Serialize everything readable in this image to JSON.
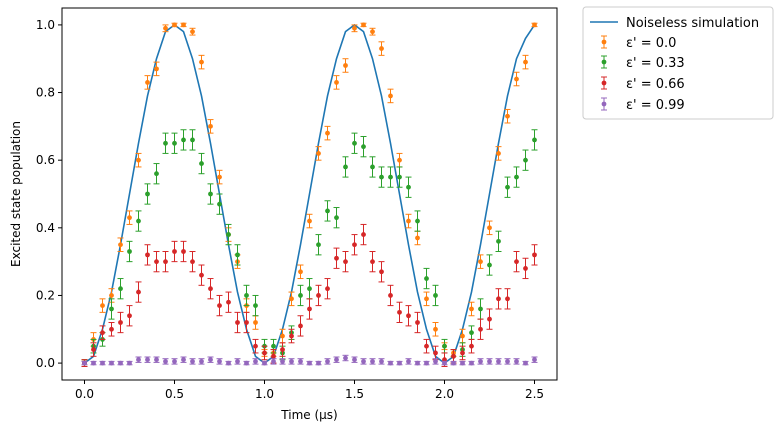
{
  "chart_data": {
    "type": "scatter",
    "xlabel": "Time (μs)",
    "ylabel": "Excited state population",
    "xlim": [
      -0.125,
      2.625
    ],
    "ylim": [
      -0.05,
      1.05
    ],
    "xticks": [
      0.0,
      0.5,
      1.0,
      1.5,
      2.0,
      2.5
    ],
    "xtick_labels": [
      "0.0",
      "0.5",
      "1.0",
      "1.5",
      "2.0",
      "2.5"
    ],
    "yticks": [
      0.0,
      0.2,
      0.4,
      0.6,
      0.8,
      1.0
    ],
    "ytick_labels": [
      "0.0",
      "0.2",
      "0.4",
      "0.6",
      "0.8",
      "1.0"
    ],
    "grid": false,
    "legend_position": "outside-top-right",
    "x": [
      0.0,
      0.05,
      0.1,
      0.15,
      0.2,
      0.25,
      0.3,
      0.35,
      0.4,
      0.45,
      0.5,
      0.55,
      0.6,
      0.65,
      0.7,
      0.75,
      0.8,
      0.85,
      0.9,
      0.95,
      1.0,
      1.05,
      1.1,
      1.15,
      1.2,
      1.25,
      1.3,
      1.35,
      1.4,
      1.45,
      1.5,
      1.55,
      1.6,
      1.65,
      1.7,
      1.75,
      1.8,
      1.85,
      1.9,
      1.95,
      2.0,
      2.05,
      2.1,
      2.15,
      2.2,
      2.25,
      2.3,
      2.35,
      2.4,
      2.45,
      2.5
    ],
    "line": {
      "name": "Noiseless simulation",
      "color": "#1f77b4",
      "x": [
        0.0,
        0.05,
        0.1,
        0.15,
        0.2,
        0.25,
        0.3,
        0.35,
        0.4,
        0.45,
        0.5,
        0.55,
        0.6,
        0.65,
        0.7,
        0.75,
        0.8,
        0.85,
        0.9,
        0.95,
        1.0,
        1.05,
        1.1,
        1.15,
        1.2,
        1.25,
        1.3,
        1.35,
        1.4,
        1.45,
        1.5,
        1.55,
        1.6,
        1.65,
        1.7,
        1.75,
        1.8,
        1.85,
        1.9,
        1.95,
        2.0,
        2.05,
        2.1,
        2.15,
        2.2,
        2.25,
        2.3,
        2.35,
        2.4,
        2.45,
        2.5
      ],
      "y": [
        0.0,
        0.02,
        0.1,
        0.21,
        0.35,
        0.5,
        0.65,
        0.79,
        0.9,
        0.98,
        1.0,
        0.98,
        0.9,
        0.79,
        0.65,
        0.5,
        0.35,
        0.21,
        0.1,
        0.02,
        0.0,
        0.02,
        0.1,
        0.21,
        0.35,
        0.5,
        0.65,
        0.79,
        0.9,
        0.98,
        1.0,
        0.98,
        0.9,
        0.79,
        0.65,
        0.5,
        0.35,
        0.21,
        0.1,
        0.02,
        0.0,
        0.02,
        0.1,
        0.21,
        0.35,
        0.5,
        0.65,
        0.79,
        0.9,
        0.96,
        1.0
      ]
    },
    "series": [
      {
        "name": "ε' = 0.0",
        "color": "#ff7f0e",
        "y": [
          0.0,
          0.07,
          0.17,
          0.2,
          0.35,
          0.43,
          0.6,
          0.83,
          0.87,
          0.99,
          1.0,
          1.0,
          0.98,
          0.89,
          0.7,
          0.55,
          0.38,
          0.3,
          0.17,
          0.12,
          0.03,
          0.03,
          0.08,
          0.19,
          0.27,
          0.42,
          0.62,
          0.68,
          0.83,
          0.88,
          0.99,
          1.0,
          0.98,
          0.93,
          0.79,
          0.6,
          0.42,
          0.37,
          0.19,
          0.1,
          0.05,
          0.03,
          0.08,
          0.16,
          0.3,
          0.4,
          0.62,
          0.73,
          0.84,
          0.89,
          1.0
        ],
        "err": [
          0.01,
          0.02,
          0.02,
          0.02,
          0.02,
          0.02,
          0.02,
          0.02,
          0.02,
          0.01,
          0.005,
          0.005,
          0.01,
          0.02,
          0.02,
          0.02,
          0.02,
          0.02,
          0.02,
          0.02,
          0.01,
          0.01,
          0.02,
          0.02,
          0.02,
          0.02,
          0.02,
          0.02,
          0.02,
          0.02,
          0.01,
          0.005,
          0.01,
          0.02,
          0.02,
          0.02,
          0.02,
          0.02,
          0.02,
          0.02,
          0.01,
          0.01,
          0.02,
          0.02,
          0.02,
          0.02,
          0.02,
          0.02,
          0.02,
          0.02,
          0.005
        ]
      },
      {
        "name": "ε' = 0.33",
        "color": "#2ca02c",
        "y": [
          0.0,
          0.05,
          0.07,
          0.16,
          0.22,
          0.33,
          0.42,
          0.5,
          0.56,
          0.65,
          0.65,
          0.66,
          0.66,
          0.59,
          0.5,
          0.47,
          0.38,
          0.32,
          0.2,
          0.17,
          0.05,
          0.05,
          0.03,
          0.09,
          0.2,
          0.22,
          0.35,
          0.45,
          0.43,
          0.58,
          0.65,
          0.64,
          0.58,
          0.55,
          0.55,
          0.55,
          0.52,
          0.42,
          0.25,
          0.2,
          0.05,
          0.02,
          0.04,
          0.09,
          0.16,
          0.29,
          0.36,
          0.52,
          0.55,
          0.6,
          0.66
        ],
        "err": [
          0.01,
          0.02,
          0.02,
          0.03,
          0.03,
          0.03,
          0.03,
          0.03,
          0.03,
          0.03,
          0.03,
          0.03,
          0.03,
          0.03,
          0.03,
          0.03,
          0.03,
          0.03,
          0.03,
          0.03,
          0.02,
          0.02,
          0.02,
          0.02,
          0.03,
          0.03,
          0.03,
          0.03,
          0.03,
          0.03,
          0.03,
          0.03,
          0.03,
          0.03,
          0.03,
          0.03,
          0.03,
          0.03,
          0.03,
          0.03,
          0.02,
          0.02,
          0.02,
          0.02,
          0.03,
          0.03,
          0.03,
          0.03,
          0.03,
          0.03,
          0.03
        ]
      },
      {
        "name": "ε' = 0.66",
        "color": "#d62728",
        "y": [
          0.0,
          0.04,
          0.09,
          0.1,
          0.12,
          0.14,
          0.21,
          0.32,
          0.3,
          0.3,
          0.33,
          0.33,
          0.3,
          0.26,
          0.22,
          0.17,
          0.18,
          0.12,
          0.12,
          0.05,
          0.03,
          0.02,
          0.04,
          0.08,
          0.11,
          0.16,
          0.2,
          0.22,
          0.31,
          0.3,
          0.35,
          0.38,
          0.3,
          0.27,
          0.2,
          0.15,
          0.14,
          0.12,
          0.05,
          0.03,
          0.01,
          0.02,
          0.03,
          0.05,
          0.1,
          0.13,
          0.19,
          0.19,
          0.3,
          0.28,
          0.32
        ],
        "err": [
          0.01,
          0.02,
          0.02,
          0.02,
          0.03,
          0.03,
          0.03,
          0.03,
          0.03,
          0.03,
          0.03,
          0.03,
          0.03,
          0.03,
          0.03,
          0.03,
          0.03,
          0.03,
          0.03,
          0.02,
          0.02,
          0.02,
          0.02,
          0.02,
          0.03,
          0.03,
          0.03,
          0.03,
          0.03,
          0.03,
          0.03,
          0.03,
          0.03,
          0.03,
          0.03,
          0.03,
          0.03,
          0.03,
          0.02,
          0.02,
          0.02,
          0.02,
          0.02,
          0.02,
          0.03,
          0.03,
          0.03,
          0.03,
          0.03,
          0.03,
          0.03
        ]
      },
      {
        "name": "ε' = 0.99",
        "color": "#9467bd",
        "y": [
          0.0,
          0.0,
          0.0,
          0.0,
          0.0,
          0.0,
          0.01,
          0.01,
          0.01,
          0.005,
          0.005,
          0.01,
          0.005,
          0.005,
          0.01,
          0.005,
          0.0,
          0.005,
          0.0,
          0.005,
          0.0,
          0.005,
          0.005,
          0.005,
          0.005,
          0.0,
          0.0,
          0.005,
          0.01,
          0.015,
          0.01,
          0.005,
          0.005,
          0.005,
          0.0,
          0.0,
          0.005,
          0.0,
          0.0,
          0.005,
          0.0,
          0.0,
          0.0,
          0.0,
          0.005,
          0.005,
          0.005,
          0.005,
          0.005,
          0.0,
          0.01
        ],
        "err": [
          0.005,
          0.005,
          0.005,
          0.005,
          0.005,
          0.005,
          0.008,
          0.008,
          0.008,
          0.008,
          0.008,
          0.008,
          0.008,
          0.008,
          0.008,
          0.008,
          0.005,
          0.008,
          0.005,
          0.008,
          0.005,
          0.008,
          0.008,
          0.008,
          0.008,
          0.005,
          0.005,
          0.008,
          0.008,
          0.008,
          0.008,
          0.008,
          0.008,
          0.008,
          0.005,
          0.005,
          0.008,
          0.005,
          0.005,
          0.008,
          0.005,
          0.005,
          0.005,
          0.005,
          0.008,
          0.008,
          0.008,
          0.008,
          0.008,
          0.005,
          0.008
        ]
      }
    ]
  }
}
